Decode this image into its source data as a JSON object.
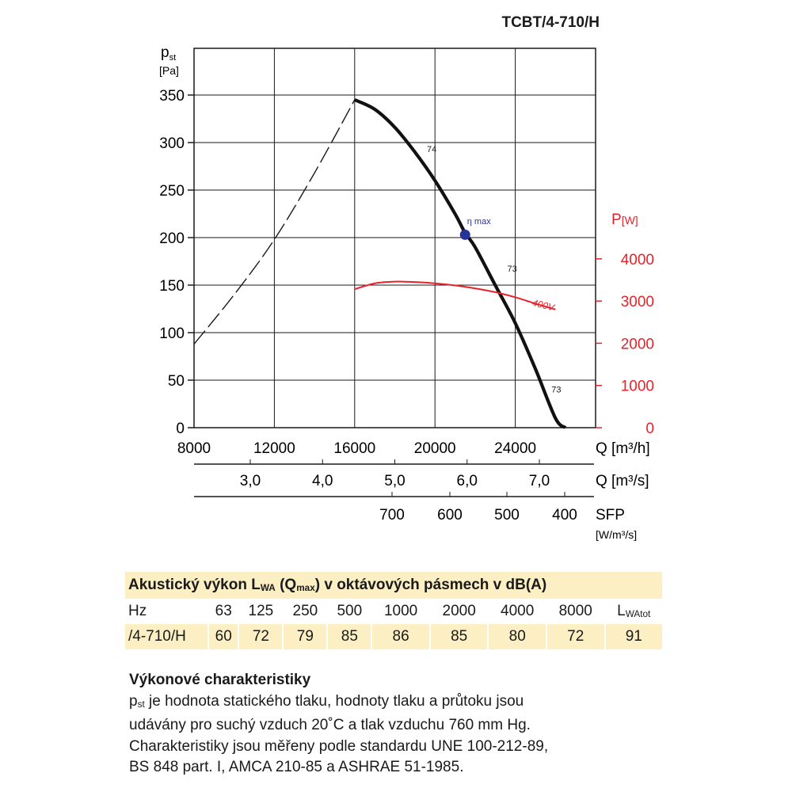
{
  "chart_data": {
    "type": "line",
    "title": "TCBT/4-710/H",
    "ylabel_main": "p",
    "ylabel_sub": "st",
    "ylabel_unit": "[Pa]",
    "xlim": [
      8000,
      28000
    ],
    "ylim": [
      0,
      350
    ],
    "yticks": [
      "0",
      "50",
      "100",
      "150",
      "200",
      "250",
      "300",
      "350"
    ],
    "x_axis_m3h": {
      "label": "Q [m³/h]",
      "ticks": [
        "8000",
        "12000",
        "16000",
        "20000",
        "24000"
      ]
    },
    "x_axis_m3s": {
      "label": "Q [m³/s]",
      "ticks": [
        "3,0",
        "4,0",
        "5,0",
        "6,0",
        "7,0"
      ]
    },
    "x_axis_sfp": {
      "label": "SFP",
      "unit": "[W/m³/s]",
      "ticks": [
        "700",
        "600",
        "500",
        "400"
      ]
    },
    "y2_axis": {
      "label": "P",
      "unit": "[W]",
      "ticks": [
        "0",
        "1000",
        "2000",
        "3000",
        "4000"
      ],
      "ylim": [
        0,
        4500
      ]
    },
    "series": [
      {
        "name": "",
        "style": "dashed",
        "color": "#1a1a1a",
        "x": [
          8000,
          10000,
          12000,
          14000,
          16000
        ],
        "y": [
          88,
          140,
          198,
          268,
          345
        ]
      },
      {
        "name": "",
        "style": "solid",
        "color": "#111111",
        "x": [
          16000,
          17000,
          18000,
          19000,
          20000,
          21000,
          21500,
          22000,
          23000,
          24000,
          25000,
          26000,
          26500
        ],
        "y": [
          345,
          335,
          316,
          290,
          260,
          225,
          205,
          190,
          150,
          110,
          62,
          10,
          0
        ]
      },
      {
        "name": "400V",
        "style": "solid",
        "color": "#e8222b",
        "axis": "y2",
        "x": [
          16000,
          17000,
          18000,
          19000,
          20000,
          21000,
          22000,
          23000,
          24000,
          25000,
          26000
        ],
        "y": [
          3280,
          3420,
          3460,
          3450,
          3420,
          3370,
          3300,
          3210,
          3090,
          2940,
          2800
        ]
      }
    ],
    "annotations": [
      {
        "text": "74",
        "x": 19600,
        "y": 290
      },
      {
        "text": "η max",
        "x": 21600,
        "y": 214
      },
      {
        "text": "73",
        "x": 23600,
        "y": 164
      },
      {
        "text": "73",
        "x": 25800,
        "y": 37
      }
    ],
    "eta_max_point": {
      "x": 21500,
      "y": 203,
      "color": "#26349a"
    }
  },
  "acoustic": {
    "title_parts": [
      "Akustický výkon L",
      "WA",
      " (Q",
      "max",
      ") v oktávových pásmech v dB(A)"
    ],
    "hz_label": "Hz",
    "bands": [
      "63",
      "125",
      "250",
      "500",
      "1000",
      "2000",
      "4000",
      "8000"
    ],
    "total_main": "L",
    "total_sub": "WAtot",
    "row_label": "/4-710/H",
    "values": [
      "60",
      "72",
      "79",
      "85",
      "86",
      "85",
      "80",
      "72",
      "91"
    ]
  },
  "description": {
    "heading": "Výkonové charakteristiky",
    "pst_main": "p",
    "pst_sub": "st",
    "line1_rest": " je hodnota statického tlaku, hodnoty tlaku a průtoku jsou",
    "line2": "udávány pro suchý vzduch 20˚C a tlak vzduchu 760 mm Hg.",
    "line3": "Charakteristiky jsou měřeny podle standardu UNE 100-212-89,",
    "line4": "BS 848 part. I, AMCA 210-85 a ASHRAE 51-1985."
  }
}
